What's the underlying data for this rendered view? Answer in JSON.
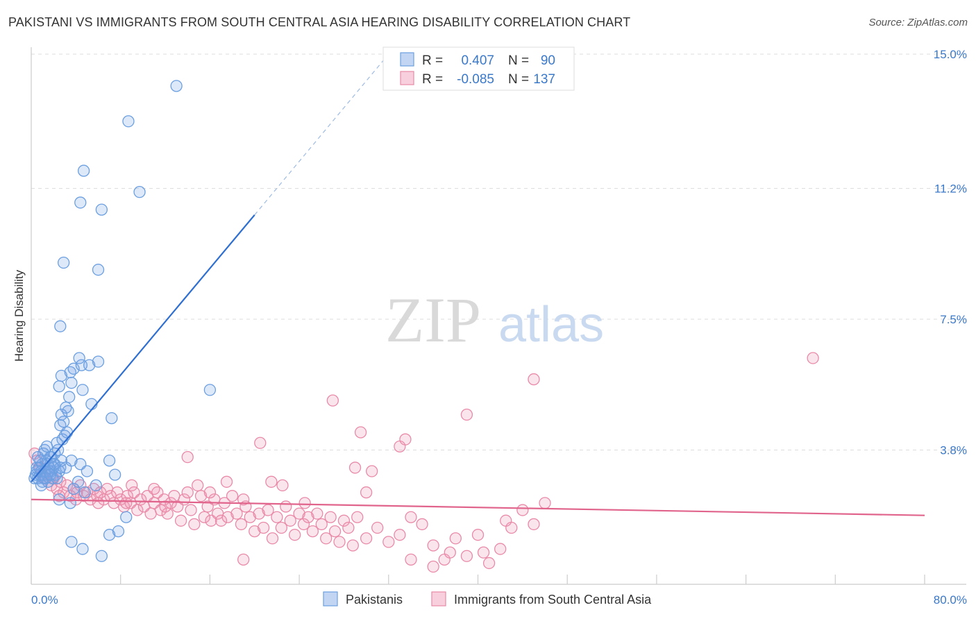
{
  "header": {
    "title": "PAKISTANI VS IMMIGRANTS FROM SOUTH CENTRAL ASIA HEARING DISABILITY CORRELATION CHART",
    "source": "Source: ZipAtlas.com"
  },
  "watermark": {
    "zip": "ZIP",
    "atlas": "atlas"
  },
  "colors": {
    "blue": "#6b9fe0",
    "blue_fill": "rgba(120,165,230,0.25)",
    "blue_line": "#2f6fd0",
    "pink": "#e88aa8",
    "pink_fill": "rgba(240,150,180,0.25)",
    "pink_line": "#e0648c",
    "tick_text": "#3a78c9",
    "grid": "#dddddd"
  },
  "legend": {
    "rows": [
      {
        "r_label": "R =",
        "r_value": "0.407",
        "n_label": "N =",
        "n_value": "90",
        "series": "blue"
      },
      {
        "r_label": "R =",
        "r_value": "-0.085",
        "n_label": "N =",
        "n_value": "137",
        "series": "pink"
      }
    ]
  },
  "chart_data": {
    "type": "scatter",
    "xlabel": "",
    "ylabel": "Hearing Disability",
    "xlim": [
      0,
      80
    ],
    "ylim": [
      0,
      15
    ],
    "x_ticks": [
      "0.0%",
      "80.0%"
    ],
    "y_ticks": [
      {
        "value": 3.8,
        "label": "3.8%"
      },
      {
        "value": 7.5,
        "label": "7.5%"
      },
      {
        "value": 11.2,
        "label": "11.2%"
      },
      {
        "value": 15.0,
        "label": "15.0%"
      }
    ],
    "legend_position": "top-center",
    "series": [
      {
        "name": "Pakistanis",
        "color": "blue",
        "trend": {
          "x0": 0,
          "y0": 2.9,
          "x1": 20.0,
          "y1": 10.45,
          "dashed_to_x": 32.0,
          "dashed_to_y": 15.0
        },
        "points": [
          [
            0.3,
            3.0
          ],
          [
            0.4,
            3.1
          ],
          [
            0.5,
            3.2
          ],
          [
            0.6,
            3.0
          ],
          [
            0.7,
            3.3
          ],
          [
            0.8,
            3.1
          ],
          [
            0.9,
            3.2
          ],
          [
            1.0,
            3.4
          ],
          [
            1.1,
            3.0
          ],
          [
            1.2,
            3.2
          ],
          [
            1.3,
            3.5
          ],
          [
            1.4,
            3.1
          ],
          [
            1.5,
            2.9
          ],
          [
            1.6,
            3.3
          ],
          [
            1.7,
            3.6
          ],
          [
            1.8,
            3.2
          ],
          [
            1.9,
            3.0
          ],
          [
            2.0,
            3.4
          ],
          [
            2.1,
            3.7
          ],
          [
            2.2,
            3.1
          ],
          [
            0.5,
            3.3
          ],
          [
            0.8,
            3.5
          ],
          [
            1.0,
            2.9
          ],
          [
            1.2,
            3.8
          ],
          [
            1.5,
            3.4
          ],
          [
            1.8,
            3.6
          ],
          [
            2.0,
            3.3
          ],
          [
            2.3,
            3.0
          ],
          [
            2.5,
            3.2
          ],
          [
            2.7,
            3.5
          ],
          [
            1.1,
            3.7
          ],
          [
            1.4,
            3.9
          ],
          [
            1.6,
            3.2
          ],
          [
            2.4,
            3.8
          ],
          [
            0.6,
            3.6
          ],
          [
            0.9,
            2.8
          ],
          [
            1.3,
            3.0
          ],
          [
            1.7,
            3.1
          ],
          [
            2.1,
            3.4
          ],
          [
            2.6,
            3.3
          ],
          [
            2.3,
            4.0
          ],
          [
            2.8,
            4.1
          ],
          [
            3.0,
            4.2
          ],
          [
            3.2,
            4.3
          ],
          [
            2.6,
            4.5
          ],
          [
            2.9,
            4.6
          ],
          [
            3.3,
            4.9
          ],
          [
            2.7,
            4.8
          ],
          [
            3.1,
            5.0
          ],
          [
            3.4,
            5.3
          ],
          [
            2.5,
            5.6
          ],
          [
            3.6,
            5.7
          ],
          [
            2.7,
            5.9
          ],
          [
            3.5,
            6.0
          ],
          [
            3.8,
            6.1
          ],
          [
            4.5,
            6.2
          ],
          [
            4.3,
            6.4
          ],
          [
            5.2,
            6.2
          ],
          [
            6.0,
            6.3
          ],
          [
            4.6,
            5.5
          ],
          [
            5.4,
            5.1
          ],
          [
            7.2,
            4.7
          ],
          [
            3.1,
            3.3
          ],
          [
            3.6,
            3.5
          ],
          [
            4.4,
            3.4
          ],
          [
            5.0,
            3.2
          ],
          [
            7.0,
            3.5
          ],
          [
            7.5,
            3.1
          ],
          [
            4.2,
            2.9
          ],
          [
            3.8,
            2.7
          ],
          [
            5.8,
            2.8
          ],
          [
            4.8,
            2.6
          ],
          [
            3.5,
            2.3
          ],
          [
            2.5,
            2.4
          ],
          [
            8.5,
            1.9
          ],
          [
            7.0,
            1.4
          ],
          [
            7.8,
            1.5
          ],
          [
            3.6,
            1.2
          ],
          [
            4.6,
            1.0
          ],
          [
            6.3,
            0.8
          ],
          [
            2.6,
            7.3
          ],
          [
            6.0,
            8.9
          ],
          [
            2.9,
            9.1
          ],
          [
            4.4,
            10.8
          ],
          [
            6.3,
            10.6
          ],
          [
            9.7,
            11.1
          ],
          [
            4.7,
            11.7
          ],
          [
            8.7,
            13.1
          ],
          [
            13.0,
            14.1
          ],
          [
            16.0,
            5.5
          ]
        ]
      },
      {
        "name": "Immigrants from South Central Asia",
        "color": "pink",
        "trend": {
          "x0": 0,
          "y0": 2.4,
          "x1": 80,
          "y1": 1.95
        },
        "points": [
          [
            0.3,
            3.7
          ],
          [
            0.5,
            3.5
          ],
          [
            0.8,
            3.3
          ],
          [
            1.0,
            3.1
          ],
          [
            1.2,
            3.0
          ],
          [
            1.5,
            2.9
          ],
          [
            1.8,
            2.8
          ],
          [
            2.0,
            3.0
          ],
          [
            2.3,
            2.7
          ],
          [
            2.6,
            2.9
          ],
          [
            2.9,
            2.6
          ],
          [
            3.2,
            2.8
          ],
          [
            3.5,
            2.5
          ],
          [
            3.8,
            2.7
          ],
          [
            4.1,
            2.6
          ],
          [
            4.4,
            2.8
          ],
          [
            4.7,
            2.5
          ],
          [
            5.0,
            2.6
          ],
          [
            5.3,
            2.4
          ],
          [
            5.6,
            2.7
          ],
          [
            5.9,
            2.5
          ],
          [
            6.2,
            2.6
          ],
          [
            6.5,
            2.4
          ],
          [
            6.8,
            2.7
          ],
          [
            7.1,
            2.5
          ],
          [
            7.4,
            2.3
          ],
          [
            7.7,
            2.6
          ],
          [
            8.0,
            2.4
          ],
          [
            8.3,
            2.2
          ],
          [
            8.6,
            2.5
          ],
          [
            8.9,
            2.3
          ],
          [
            9.2,
            2.6
          ],
          [
            9.5,
            2.1
          ],
          [
            9.8,
            2.4
          ],
          [
            10.1,
            2.2
          ],
          [
            10.4,
            2.5
          ],
          [
            10.7,
            2.0
          ],
          [
            11.0,
            2.3
          ],
          [
            11.3,
            2.6
          ],
          [
            11.6,
            2.1
          ],
          [
            11.9,
            2.4
          ],
          [
            12.2,
            2.0
          ],
          [
            12.5,
            2.3
          ],
          [
            12.8,
            2.5
          ],
          [
            13.1,
            2.2
          ],
          [
            13.4,
            1.8
          ],
          [
            13.7,
            2.4
          ],
          [
            14.0,
            2.6
          ],
          [
            14.3,
            2.1
          ],
          [
            14.6,
            1.7
          ],
          [
            14.9,
            2.8
          ],
          [
            15.2,
            2.5
          ],
          [
            15.5,
            1.9
          ],
          [
            15.8,
            2.2
          ],
          [
            16.1,
            1.8
          ],
          [
            16.4,
            2.4
          ],
          [
            16.7,
            2.0
          ],
          [
            17.0,
            1.8
          ],
          [
            17.3,
            2.3
          ],
          [
            17.6,
            1.9
          ],
          [
            18.0,
            2.5
          ],
          [
            18.4,
            2.0
          ],
          [
            18.8,
            1.7
          ],
          [
            19.2,
            2.2
          ],
          [
            19.6,
            1.9
          ],
          [
            20.0,
            1.5
          ],
          [
            20.4,
            2.0
          ],
          [
            20.8,
            1.6
          ],
          [
            21.2,
            2.1
          ],
          [
            21.6,
            1.3
          ],
          [
            22.0,
            1.9
          ],
          [
            22.4,
            1.6
          ],
          [
            22.8,
            2.2
          ],
          [
            23.2,
            1.8
          ],
          [
            23.6,
            1.4
          ],
          [
            24.0,
            2.0
          ],
          [
            24.4,
            1.7
          ],
          [
            24.8,
            1.9
          ],
          [
            25.2,
            1.5
          ],
          [
            25.6,
            2.0
          ],
          [
            26.0,
            1.7
          ],
          [
            26.4,
            1.3
          ],
          [
            26.8,
            1.9
          ],
          [
            27.2,
            1.5
          ],
          [
            27.6,
            1.2
          ],
          [
            28.0,
            1.8
          ],
          [
            28.4,
            1.6
          ],
          [
            28.8,
            1.1
          ],
          [
            29.2,
            1.9
          ],
          [
            30.0,
            2.6
          ],
          [
            31.0,
            1.6
          ],
          [
            32.0,
            1.2
          ],
          [
            33.0,
            1.4
          ],
          [
            34.0,
            1.9
          ],
          [
            35.0,
            1.7
          ],
          [
            36.0,
            1.1
          ],
          [
            37.0,
            0.7
          ],
          [
            38.0,
            1.3
          ],
          [
            39.0,
            0.8
          ],
          [
            40.0,
            1.4
          ],
          [
            41.0,
            0.6
          ],
          [
            42.0,
            1.0
          ],
          [
            43.0,
            1.6
          ],
          [
            44.0,
            2.1
          ],
          [
            45.0,
            1.7
          ],
          [
            46.0,
            2.3
          ],
          [
            2.5,
            2.5
          ],
          [
            4.0,
            2.4
          ],
          [
            6.0,
            2.3
          ],
          [
            9.0,
            2.8
          ],
          [
            12.0,
            2.2
          ],
          [
            16.0,
            2.6
          ],
          [
            19.0,
            2.4
          ],
          [
            21.5,
            2.9
          ],
          [
            24.5,
            2.3
          ],
          [
            27.0,
            5.2
          ],
          [
            29.5,
            4.3
          ],
          [
            29.0,
            3.3
          ],
          [
            30.5,
            3.2
          ],
          [
            33.0,
            3.9
          ],
          [
            33.5,
            4.1
          ],
          [
            34.0,
            0.7
          ],
          [
            36.0,
            0.5
          ],
          [
            37.5,
            0.9
          ],
          [
            39.0,
            4.8
          ],
          [
            40.5,
            0.9
          ],
          [
            42.5,
            1.8
          ],
          [
            45.0,
            5.8
          ],
          [
            14.0,
            3.6
          ],
          [
            20.5,
            4.0
          ],
          [
            22.5,
            2.8
          ],
          [
            17.5,
            2.9
          ],
          [
            11.0,
            2.7
          ],
          [
            8.5,
            2.3
          ],
          [
            70.0,
            6.4
          ],
          [
            19.0,
            0.7
          ],
          [
            30.0,
            1.3
          ]
        ]
      }
    ]
  },
  "bottom_legend": [
    {
      "label": "Pakistanis",
      "series": "blue"
    },
    {
      "label": "Immigrants from South Central Asia",
      "series": "pink"
    }
  ]
}
